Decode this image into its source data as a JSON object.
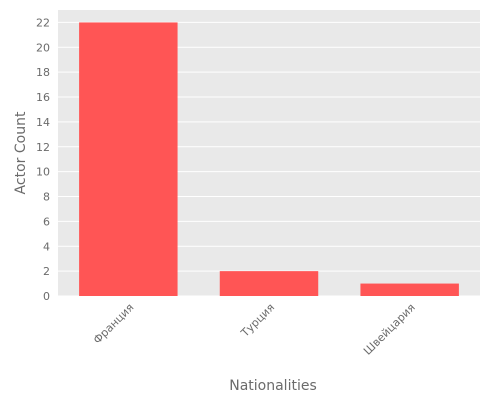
{
  "chart_data": {
    "type": "bar",
    "categories": [
      "Франция",
      "Турция",
      "Швейцария"
    ],
    "values": [
      22,
      2,
      1
    ],
    "xlabel": "Nationalities",
    "ylabel": "Actor Count",
    "ylim": [
      0,
      23
    ],
    "yticks": [
      0,
      2,
      4,
      6,
      8,
      10,
      12,
      14,
      16,
      18,
      20,
      22
    ],
    "grid": true,
    "colors": {
      "bar": "#ff5555",
      "plot_background": "#e9e9e9",
      "grid": "#ffffff",
      "text": "#6b6b6b"
    }
  }
}
